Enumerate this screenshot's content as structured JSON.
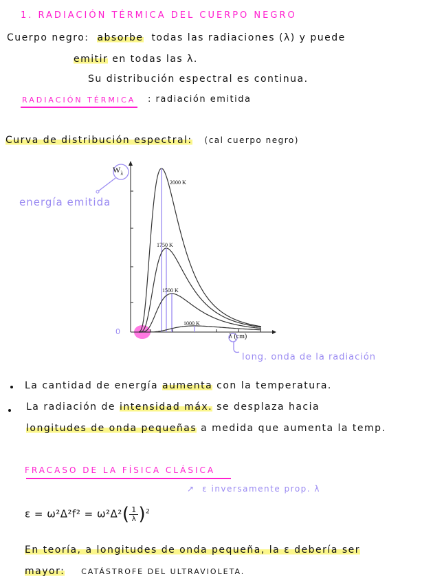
{
  "title": "1. RADIACIÓN TÉRMICA DEL CUERPO NEGRO",
  "definition": {
    "term": "Cuerpo negro:",
    "highlight": "absorbe",
    "line1_rest": "todas las radiaciones (λ) y puede",
    "line2_highlight": "emitir",
    "line2_rest": "en todas las λ.",
    "line3": "Su distribución espectral es continua."
  },
  "thermal": {
    "term": "RADIACIÓN TÉRMICA",
    "definition": ": radiación emitida"
  },
  "curve_heading": {
    "highlight": "Curva de distribución espectral:",
    "note": "(cal cuerpo negro)"
  },
  "diagram": {
    "y_axis_label": "W",
    "y_axis_sub": "λ",
    "x_axis_label": "λ (cm)",
    "origin_label": "0",
    "curves": [
      {
        "label": "2000 K"
      },
      {
        "label": "1750 K"
      },
      {
        "label": "1500 K"
      },
      {
        "label": "1000 K"
      }
    ],
    "annotation_y": "energía emitida",
    "annotation_x": "long. onda de la radiación",
    "colors": {
      "annotation": "#9a8af2",
      "highlight": "#ff1fcf",
      "curve": "#333333"
    }
  },
  "bullets": [
    {
      "pre": "La cantidad de energía",
      "hl": "aumenta",
      "post": "con la temperatura."
    },
    {
      "pre": "La radiación de",
      "hl": "intensidad máx.",
      "post": "se desplaza hacia"
    }
  ],
  "bullet2_cont": {
    "hl": "longitudes de onda pequeñas",
    "post": "a medida que aumenta la temp."
  },
  "failure": {
    "title": "FRACASO DE LA FÍSICA CLÁSICA",
    "annotation": "ε inversamente prop. λ",
    "formula_left": "ε = ω²Δ²f² = ω²Δ²",
    "formula_num": "1",
    "formula_den": "λ",
    "formula_exp": "2",
    "theory_hl": "En teoría, a longitudes de onda pequeña, la ε debería ser",
    "last_hl": "mayor:",
    "last_rest": "CATÁSTROFE DEL ULTRAVIOLETA."
  },
  "colors": {
    "pink": "#ff1fcf",
    "purple": "#9a8af2",
    "highlight": "#fbf68a"
  }
}
